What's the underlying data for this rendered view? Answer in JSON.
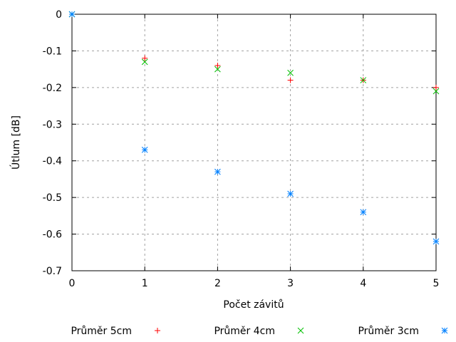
{
  "chart_data": {
    "type": "scatter",
    "title": "",
    "xlabel": "Počet závitů",
    "ylabel": "Útlum [dB]",
    "xlim": [
      0,
      5
    ],
    "ylim": [
      -0.7,
      0
    ],
    "xticks": [
      "0",
      "1",
      "2",
      "3",
      "4",
      "5"
    ],
    "yticks": [
      "0",
      "-0.1",
      "-0.2",
      "-0.3",
      "-0.4",
      "-0.5",
      "-0.6",
      "-0.7"
    ],
    "grid": true,
    "legend_position": "bottom",
    "series": [
      {
        "name": "Průměr 5cm",
        "marker": "plus",
        "color": "#ff0000",
        "x": [
          0,
          1,
          2,
          3,
          4,
          5
        ],
        "y": [
          0,
          -0.12,
          -0.14,
          -0.18,
          -0.18,
          -0.2
        ]
      },
      {
        "name": "Průměr 4cm",
        "marker": "cross",
        "color": "#00c000",
        "x": [
          0,
          1,
          2,
          3,
          4,
          5
        ],
        "y": [
          0,
          -0.13,
          -0.15,
          -0.16,
          -0.18,
          -0.21
        ]
      },
      {
        "name": "Průměr 3cm",
        "marker": "star",
        "color": "#0080ff",
        "x": [
          0,
          1,
          2,
          3,
          4,
          5
        ],
        "y": [
          0,
          -0.37,
          -0.43,
          -0.49,
          -0.54,
          -0.62
        ]
      }
    ]
  }
}
